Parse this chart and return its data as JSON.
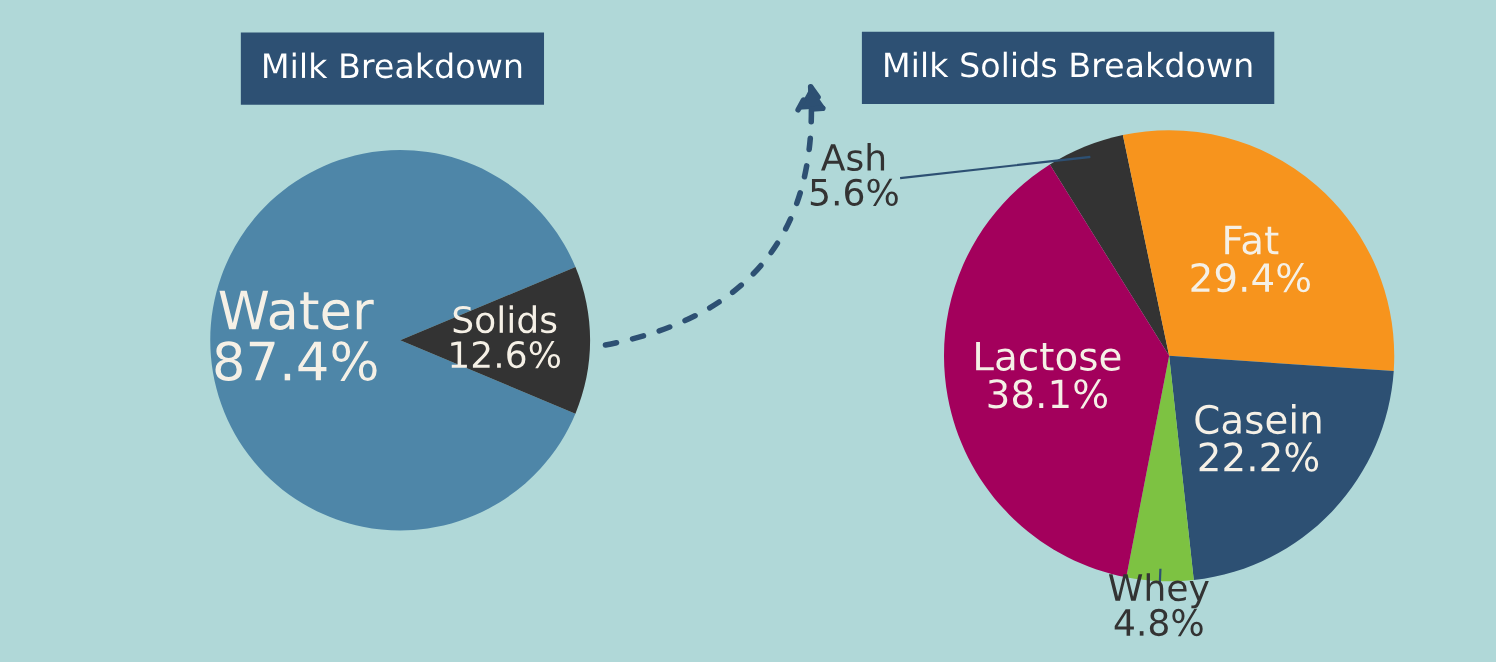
{
  "chart_data": [
    {
      "type": "pie",
      "title": "Milk Breakdown",
      "categories": [
        "Water",
        "Solids"
      ],
      "values": [
        87.4,
        12.6
      ],
      "value_labels": [
        "87.4%",
        "12.6%"
      ],
      "colors": [
        "#4e86a8",
        "#333333"
      ]
    },
    {
      "type": "pie",
      "title": "Milk Solids Breakdown",
      "categories": [
        "Ash",
        "Fat",
        "Casein",
        "Whey",
        "Lactose"
      ],
      "values": [
        5.6,
        29.4,
        22.2,
        4.8,
        38.1
      ],
      "value_labels": [
        "5.6%",
        "29.4%",
        "22.2%",
        "4.8%",
        "38.1%"
      ],
      "colors": [
        "#333333",
        "#f7941d",
        "#2d5073",
        "#7dc242",
        "#a3005c"
      ]
    }
  ]
}
